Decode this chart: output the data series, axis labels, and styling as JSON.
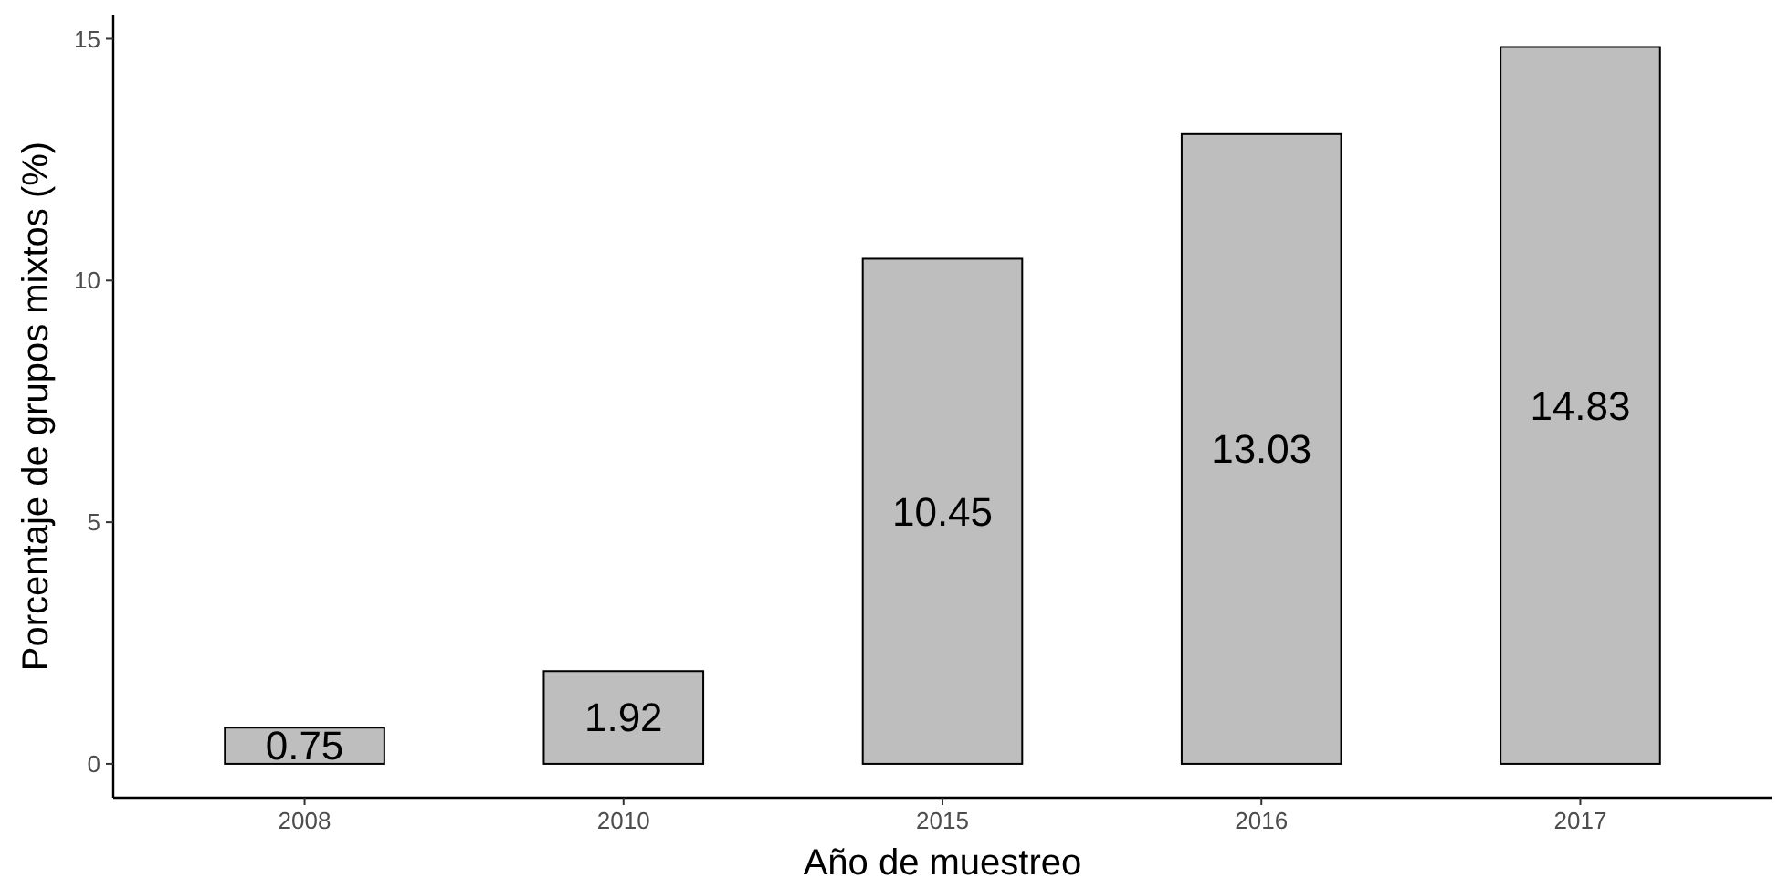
{
  "chart_data": {
    "type": "bar",
    "xlabel": "Año de muestreo",
    "ylabel": "Porcentaje de grupos mixtos (%)",
    "categories": [
      "2008",
      "2010",
      "2015",
      "2016",
      "2017"
    ],
    "values": [
      0.75,
      1.92,
      10.45,
      13.03,
      14.83
    ],
    "color": "#bebebe",
    "ylim": [
      -0.7,
      15.5
    ],
    "yticks": [
      0,
      5,
      10,
      15
    ],
    "data_labels": true
  }
}
